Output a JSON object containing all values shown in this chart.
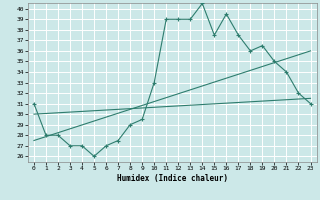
{
  "title": "",
  "xlabel": "Humidex (Indice chaleur)",
  "bg_color": "#cce8e8",
  "grid_color": "#ffffff",
  "line_color": "#2e7d6e",
  "xlim": [
    -0.5,
    23.5
  ],
  "ylim": [
    25.5,
    40.5
  ],
  "xticks": [
    0,
    1,
    2,
    3,
    4,
    5,
    6,
    7,
    8,
    9,
    10,
    11,
    12,
    13,
    14,
    15,
    16,
    17,
    18,
    19,
    20,
    21,
    22,
    23
  ],
  "yticks": [
    26,
    27,
    28,
    29,
    30,
    31,
    32,
    33,
    34,
    35,
    36,
    37,
    38,
    39,
    40
  ],
  "data_x": [
    0,
    1,
    2,
    3,
    4,
    5,
    6,
    7,
    8,
    9,
    10,
    11,
    12,
    13,
    14,
    15,
    16,
    17,
    18,
    19,
    20,
    21,
    22,
    23
  ],
  "data_y": [
    31,
    28,
    28,
    27,
    27,
    26,
    27,
    27.5,
    29,
    29.5,
    33,
    39,
    39,
    39,
    40.5,
    37.5,
    39.5,
    37.5,
    36,
    36.5,
    35,
    34,
    32,
    31
  ],
  "trend1_x": [
    0,
    23
  ],
  "trend1_y": [
    30.0,
    31.5
  ],
  "trend2_x": [
    0,
    23
  ],
  "trend2_y": [
    27.5,
    36.0
  ]
}
